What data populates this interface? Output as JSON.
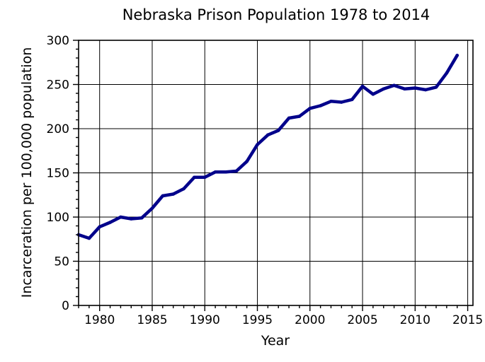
{
  "chart_data": {
    "type": "line",
    "title": "Nebraska Prison Population 1978 to 2014",
    "xlabel": "Year",
    "ylabel": "Incarceration per 100,000 population",
    "xlim": [
      1978,
      2015.5
    ],
    "ylim": [
      0,
      300
    ],
    "xticks": [
      1980,
      1985,
      1990,
      1995,
      2000,
      2005,
      2010,
      2015
    ],
    "yticks": [
      0,
      50,
      100,
      150,
      200,
      250,
      300
    ],
    "grid": true,
    "line_color": "#00008b",
    "series": [
      {
        "x": [
          1978,
          1979,
          1980,
          1981,
          1982,
          1983,
          1984,
          1985,
          1986,
          1987,
          1988,
          1989,
          1990,
          1991,
          1992,
          1993,
          1994,
          1995,
          1996,
          1997,
          1998,
          1999,
          2000,
          2001,
          2002,
          2003,
          2004,
          2005,
          2006,
          2007,
          2008,
          2009,
          2010,
          2011,
          2012,
          2013,
          2014
        ],
        "values": [
          80,
          76,
          89,
          94,
          100,
          98,
          99,
          110,
          124,
          126,
          132,
          145,
          145,
          151,
          151,
          152,
          163,
          182,
          193,
          198,
          212,
          214,
          223,
          226,
          231,
          230,
          233,
          248,
          239,
          245,
          249,
          245,
          246,
          244,
          247,
          263,
          283
        ]
      }
    ]
  }
}
